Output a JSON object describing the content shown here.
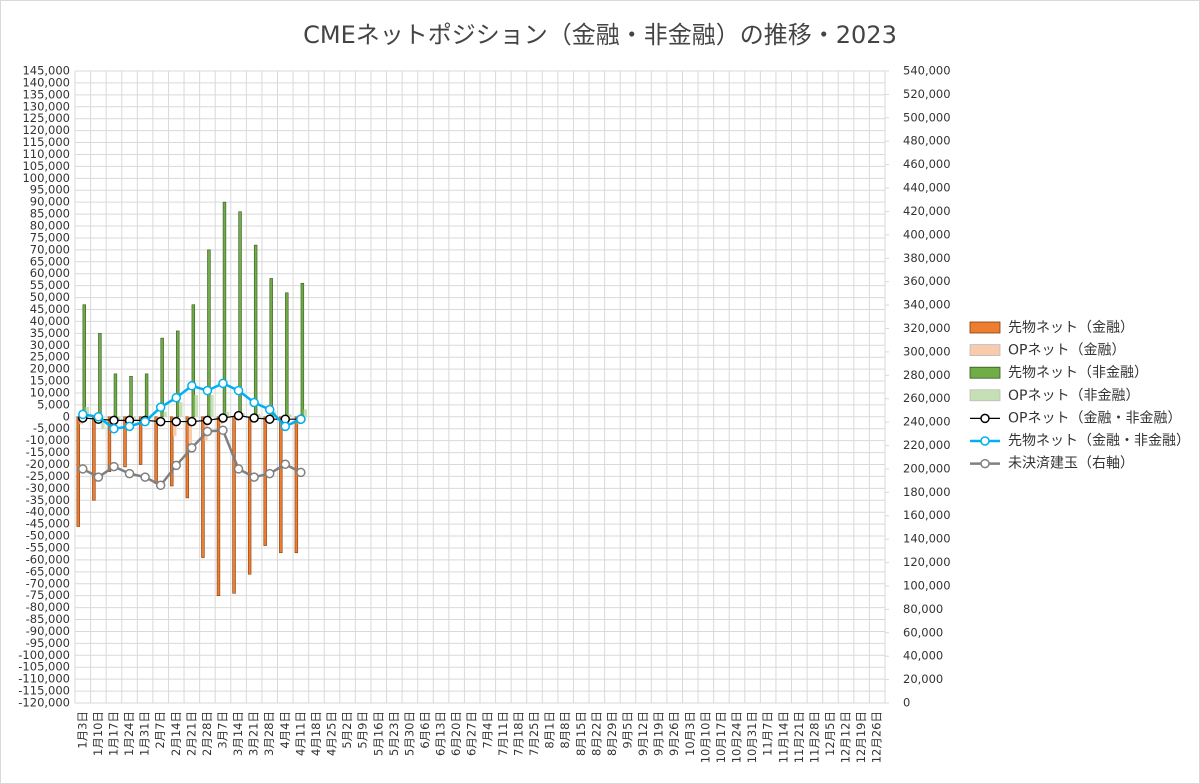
{
  "chart_data": {
    "type": "bar",
    "title": "CMEネットポジション（金融・非金融）の推移・2023",
    "categories": [
      "1月3日",
      "1月10日",
      "1月17日",
      "1月24日",
      "1月31日",
      "2月7日",
      "2月14日",
      "2月21日",
      "2月28日",
      "3月7日",
      "3月14日",
      "3月21日",
      "3月28日",
      "4月4日",
      "4月11日",
      "4月18日",
      "4月25日",
      "5月2日",
      "5月9日",
      "5月16日",
      "5月23日",
      "5月30日",
      "6月6日",
      "6月13日",
      "6月20日",
      "6月27日",
      "7月4日",
      "7月11日",
      "7月18日",
      "7月25日",
      "8月1日",
      "8月8日",
      "8月15日",
      "8月22日",
      "8月29日",
      "9月5日",
      "9月12日",
      "9月19日",
      "9月26日",
      "10月3日",
      "10月10日",
      "10月17日",
      "10月24日",
      "10月31日",
      "11月7日",
      "11月14日",
      "11月21日",
      "11月28日",
      "12月5日",
      "12月12日",
      "12月19日",
      "12月26日"
    ],
    "series": [
      {
        "name": "先物ネット（金融）",
        "type": "bar",
        "color": "#ed7d31",
        "values": [
          -46000,
          -35000,
          -23000,
          -21000,
          -20000,
          -28000,
          -29000,
          -34000,
          -59000,
          -75000,
          -74000,
          -66000,
          -54000,
          -57000,
          -57000,
          null,
          null,
          null,
          null,
          null,
          null,
          null,
          null,
          null,
          null,
          null,
          null,
          null,
          null,
          null,
          null,
          null,
          null,
          null,
          null,
          null,
          null,
          null,
          null,
          null,
          null,
          null,
          null,
          null,
          null,
          null,
          null,
          null,
          null,
          null,
          null,
          null
        ]
      },
      {
        "name": "OPネット（金融）",
        "type": "bar",
        "color": "#f8cbad",
        "values": [
          -3000,
          -1000,
          -2000,
          -1500,
          -2000,
          -3000,
          -8000,
          -11000,
          -10000,
          -3000,
          -1500,
          -1500,
          -3000,
          -1500,
          -3000,
          null,
          null,
          null,
          null,
          null,
          null,
          null,
          null,
          null,
          null,
          null,
          null,
          null,
          null,
          null,
          null,
          null,
          null,
          null,
          null,
          null,
          null,
          null,
          null,
          null,
          null,
          null,
          null,
          null,
          null,
          null,
          null,
          null,
          null,
          null,
          null,
          null
        ]
      },
      {
        "name": "先物ネット（非金融）",
        "type": "bar",
        "color": "#70ad47",
        "values": [
          47000,
          35000,
          18000,
          17000,
          18000,
          33000,
          36000,
          47000,
          70000,
          90000,
          86000,
          72000,
          58000,
          52000,
          56000,
          null,
          null,
          null,
          null,
          null,
          null,
          null,
          null,
          null,
          null,
          null,
          null,
          null,
          null,
          null,
          null,
          null,
          null,
          null,
          null,
          null,
          null,
          null,
          null,
          null,
          null,
          null,
          null,
          null,
          null,
          null,
          null,
          null,
          null,
          null,
          null,
          null
        ]
      },
      {
        "name": "OPネット（非金融）",
        "type": "bar",
        "color": "#c5e0b4",
        "values": [
          4000,
          -5000,
          -1000,
          -1000,
          -1000,
          2000,
          6000,
          9000,
          9000,
          2000,
          1500,
          1000,
          2000,
          1000,
          3000,
          null,
          null,
          null,
          null,
          null,
          null,
          null,
          null,
          null,
          null,
          null,
          null,
          null,
          null,
          null,
          null,
          null,
          null,
          null,
          null,
          null,
          null,
          null,
          null,
          null,
          null,
          null,
          null,
          null,
          null,
          null,
          null,
          null,
          null,
          null,
          null,
          null
        ]
      },
      {
        "name": "OPネット（金融・非金融）",
        "type": "line",
        "color": "#000000",
        "values": [
          -500,
          -1000,
          -1500,
          -1500,
          -1500,
          -2000,
          -2000,
          -2000,
          -1500,
          -500,
          500,
          -500,
          -1000,
          -1000,
          -1000,
          null,
          null,
          null,
          null,
          null,
          null,
          null,
          null,
          null,
          null,
          null,
          null,
          null,
          null,
          null,
          null,
          null,
          null,
          null,
          null,
          null,
          null,
          null,
          null,
          null,
          null,
          null,
          null,
          null,
          null,
          null,
          null,
          null,
          null,
          null,
          null,
          null
        ]
      },
      {
        "name": "先物ネット（金融・非金融）",
        "type": "line",
        "color": "#00b0f0",
        "values": [
          1000,
          0,
          -5000,
          -4000,
          -2000,
          4000,
          8000,
          13000,
          11000,
          14000,
          11000,
          6000,
          3000,
          -4000,
          -1000,
          null,
          null,
          null,
          null,
          null,
          null,
          null,
          null,
          null,
          null,
          null,
          null,
          null,
          null,
          null,
          null,
          null,
          null,
          null,
          null,
          null,
          null,
          null,
          null,
          null,
          null,
          null,
          null,
          null,
          null,
          null,
          null,
          null,
          null,
          null,
          null,
          null
        ]
      },
      {
        "name": "未決済建玉（右軸）",
        "type": "line",
        "axis": "y2",
        "color": "#808080",
        "values": [
          200000,
          193000,
          202000,
          196000,
          193000,
          186000,
          203000,
          218000,
          232000,
          233000,
          200000,
          193000,
          196000,
          204000,
          197000,
          null,
          null,
          null,
          null,
          null,
          null,
          null,
          null,
          null,
          null,
          null,
          null,
          null,
          null,
          null,
          null,
          null,
          null,
          null,
          null,
          null,
          null,
          null,
          null,
          null,
          null,
          null,
          null,
          null,
          null,
          null,
          null,
          null,
          null,
          null,
          null,
          null
        ]
      }
    ],
    "ylim": [
      -120000,
      145000
    ],
    "yticks": [
      {
        "value": -120000,
        "label": "-120,000"
      },
      {
        "value": -115000,
        "label": "-115,000"
      },
      {
        "value": -110000,
        "label": "-110,000"
      },
      {
        "value": -105000,
        "label": "-105,000"
      },
      {
        "value": -100000,
        "label": "-100,000"
      },
      {
        "value": -95000,
        "label": "-95,000"
      },
      {
        "value": -90000,
        "label": "-90,000"
      },
      {
        "value": -85000,
        "label": "-85,000"
      },
      {
        "value": -80000,
        "label": "-80,000"
      },
      {
        "value": -75000,
        "label": "-75,000"
      },
      {
        "value": -70000,
        "label": "-70,000"
      },
      {
        "value": -65000,
        "label": "-65,000"
      },
      {
        "value": -60000,
        "label": "-60,000"
      },
      {
        "value": -55000,
        "label": "-55,000"
      },
      {
        "value": -50000,
        "label": "-50,000"
      },
      {
        "value": -45000,
        "label": "-45,000"
      },
      {
        "value": -40000,
        "label": "-40,000"
      },
      {
        "value": -35000,
        "label": "-35,000"
      },
      {
        "value": -30000,
        "label": "-30,000"
      },
      {
        "value": -25000,
        "label": "-25,000"
      },
      {
        "value": -20000,
        "label": "-20,000"
      },
      {
        "value": -15000,
        "label": "-15,000"
      },
      {
        "value": -10000,
        "label": "-10,000"
      },
      {
        "value": -5000,
        "label": "-5,000"
      },
      0,
      {
        "value": 5000,
        "label": "5,000"
      },
      {
        "value": 10000,
        "label": "10,000"
      },
      {
        "value": 15000,
        "label": "15,000"
      },
      {
        "value": 20000,
        "label": "20,000"
      },
      {
        "value": 25000,
        "label": "25,000"
      },
      {
        "value": 30000,
        "label": "30,000"
      },
      {
        "value": 35000,
        "label": "35,000"
      },
      {
        "value": 40000,
        "label": "40,000"
      },
      {
        "value": 45000,
        "label": "45,000"
      },
      {
        "value": 50000,
        "label": "50,000"
      },
      {
        "value": 55000,
        "label": "55,000"
      },
      {
        "value": 60000,
        "label": "60,000"
      },
      {
        "value": 65000,
        "label": "65,000"
      },
      {
        "value": 70000,
        "label": "70,000"
      },
      {
        "value": 75000,
        "label": "75,000"
      },
      {
        "value": 80000,
        "label": "80,000"
      },
      {
        "value": 85000,
        "label": "85,000"
      },
      {
        "value": 90000,
        "label": "90,000"
      },
      {
        "value": 95000,
        "label": "95,000"
      },
      {
        "value": 100000,
        "label": "100,000"
      },
      {
        "value": 105000,
        "label": "105,000"
      },
      {
        "value": 110000,
        "label": "110,000"
      },
      {
        "value": 115000,
        "label": "115,000"
      },
      {
        "value": 120000,
        "label": "120,000"
      },
      {
        "value": 125000,
        "label": "125,000"
      },
      {
        "value": 130000,
        "label": "130,000"
      },
      {
        "value": 135000,
        "label": "135,000"
      },
      {
        "value": 140000,
        "label": "140,000"
      },
      {
        "value": 145000,
        "label": "145,000"
      }
    ],
    "y2lim": [
      0,
      540000
    ],
    "y2ticks": [
      0,
      {
        "value": 20000,
        "label": "20,000"
      },
      {
        "value": 40000,
        "label": "40,000"
      },
      {
        "value": 60000,
        "label": "60,000"
      },
      {
        "value": 80000,
        "label": "80,000"
      },
      {
        "value": 100000,
        "label": "100,000"
      },
      {
        "value": 120000,
        "label": "120,000"
      },
      {
        "value": 140000,
        "label": "140,000"
      },
      {
        "value": 160000,
        "label": "160,000"
      },
      {
        "value": 180000,
        "label": "180,000"
      },
      {
        "value": 200000,
        "label": "200,000"
      },
      {
        "value": 220000,
        "label": "220,000"
      },
      {
        "value": 240000,
        "label": "240,000"
      },
      {
        "value": 260000,
        "label": "260,000"
      },
      {
        "value": 280000,
        "label": "280,000"
      },
      {
        "value": 300000,
        "label": "300,000"
      },
      {
        "value": 320000,
        "label": "320,000"
      },
      {
        "value": 340000,
        "label": "340,000"
      },
      {
        "value": 360000,
        "label": "360,000"
      },
      {
        "value": 380000,
        "label": "380,000"
      },
      {
        "value": 400000,
        "label": "400,000"
      },
      {
        "value": 420000,
        "label": "420,000"
      },
      {
        "value": 440000,
        "label": "440,000"
      },
      {
        "value": 460000,
        "label": "460,000"
      },
      {
        "value": 480000,
        "label": "480,000"
      },
      {
        "value": 500000,
        "label": "500,000"
      },
      {
        "value": 520000,
        "label": "520,000"
      },
      {
        "value": 540000,
        "label": "540,000"
      }
    ],
    "grid": true,
    "legend": "right"
  }
}
